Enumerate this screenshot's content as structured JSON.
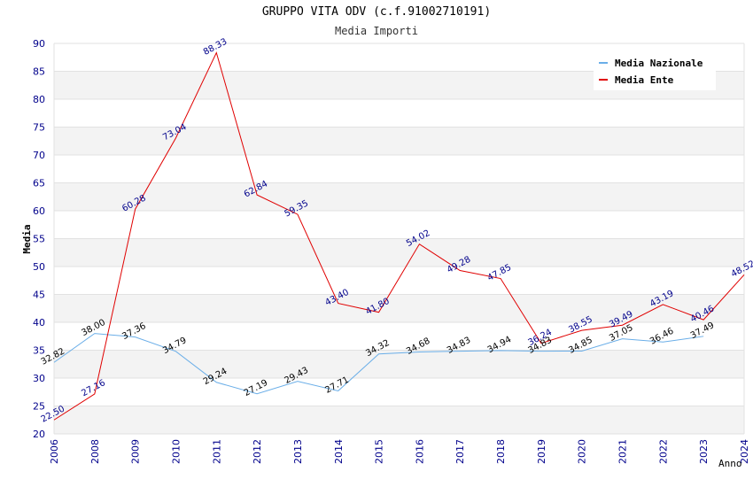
{
  "header": {
    "title": "GRUPPO VITA ODV (c.f.91002710191)",
    "subtitle": "Media Importi"
  },
  "chart_data": {
    "type": "line",
    "title": "GRUPPO VITA ODV (c.f.91002710191)",
    "subtitle": "Media Importi",
    "xlabel": "Anno",
    "ylabel": "Media",
    "ylim": [
      20,
      90
    ],
    "yticks": [
      20,
      25,
      30,
      35,
      40,
      45,
      50,
      55,
      60,
      65,
      70,
      75,
      80,
      85,
      90
    ],
    "categories": [
      "2006",
      "2008",
      "2009",
      "2010",
      "2011",
      "2012",
      "2013",
      "2014",
      "2015",
      "2016",
      "2017",
      "2018",
      "2019",
      "2020",
      "2021",
      "2022",
      "2023",
      "2024"
    ],
    "grid": "horizontal bands",
    "legend_position": "top-right",
    "series": [
      {
        "name": "Media Nazionale",
        "color": "#6aaee8",
        "label_color": "#000000",
        "values": [
          32.82,
          38.0,
          37.36,
          34.79,
          29.24,
          27.19,
          29.43,
          27.71,
          34.32,
          34.68,
          34.83,
          34.94,
          34.83,
          34.85,
          37.05,
          36.46,
          37.49,
          null
        ],
        "labels": [
          "32.82",
          "38.00",
          "37.36",
          "34.79",
          "29.24",
          "27.19",
          "29.43",
          "27.71",
          "34.32",
          "34.68",
          "34.83",
          "34.94",
          "34.83",
          "34.85",
          "37.05",
          "36.46",
          "37.49",
          ""
        ]
      },
      {
        "name": "Media Ente",
        "color": "#e00000",
        "label_color": "#00008b",
        "values": [
          22.5,
          27.16,
          60.28,
          73.04,
          88.33,
          62.84,
          59.35,
          43.4,
          41.8,
          54.02,
          49.28,
          47.85,
          36.24,
          38.55,
          39.49,
          43.19,
          40.46,
          48.52
        ],
        "labels": [
          "22.50",
          "27.16",
          "60.28",
          "73.04",
          "88.33",
          "62.84",
          "59.35",
          "43.40",
          "41.80",
          "54.02",
          "49.28",
          "47.85",
          "36.24",
          "38.55",
          "39.49",
          "43.19",
          "40.46",
          "48.52"
        ]
      }
    ]
  }
}
